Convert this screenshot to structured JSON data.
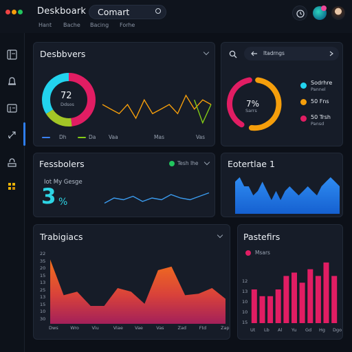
{
  "app": {
    "title": "Deskboark",
    "window_dots": [
      "#ef4444",
      "#f59e0b",
      "#22c55e"
    ]
  },
  "search": {
    "value": "Comart"
  },
  "nav": [
    "Hant",
    "Bache",
    "Bacing",
    "Forhe"
  ],
  "sidebar_icons": [
    "dashboard-icon",
    "bell-icon",
    "calendar-icon",
    "link-icon",
    "inbox-icon",
    "grid-icon"
  ],
  "panel_main": {
    "title": "Desbbvers",
    "donut_value": "72",
    "donut_sub": "Ddsos",
    "donut_segments": [
      {
        "color": "#e11d63",
        "fraction": 0.48
      },
      {
        "color": "#a3c626",
        "fraction": 0.18
      },
      {
        "color": "#22d3ee",
        "fraction": 0.34
      }
    ],
    "legend": [
      {
        "label": "Dh",
        "color": "#3b82f6"
      },
      {
        "label": "Da",
        "color": "#84cc16"
      }
    ],
    "x_labels": [
      "Vaa",
      "Mas",
      "Vas"
    ],
    "series": [
      {
        "name": "",
        "color": "#f59e0b",
        "values": [
          6,
          5,
          4,
          6,
          3,
          7,
          4,
          5,
          6,
          4,
          8,
          5,
          7,
          6
        ]
      },
      {
        "name": "",
        "color": "#84cc16",
        "values": [
          null,
          null,
          null,
          null,
          null,
          null,
          null,
          null,
          null,
          null,
          null,
          7,
          2,
          6
        ]
      }
    ]
  },
  "panel_right_top": {
    "breadcrumb": "Itadrngs",
    "gauge_value": "7%",
    "gauge_sub": "Sarrs",
    "gauge_colors": [
      "#f59e0b",
      "#e11d63"
    ],
    "legend": [
      {
        "title": "Sodrhre",
        "sub": "Pannel",
        "color": "#22d3ee"
      },
      {
        "title": "50 Fns",
        "sub": "",
        "color": "#f59e0b"
      },
      {
        "title": "50 Trsh",
        "sub": "Pansd",
        "color": "#e11d63"
      }
    ]
  },
  "panel_mid_left": {
    "title": "Fessbolers",
    "status": "Tesh Ihe",
    "status_color": "#22c55e",
    "caption": "Iot My Gesge",
    "big_value": "3",
    "big_unit": "%",
    "sparkline": [
      3,
      6,
      5,
      7,
      4,
      6,
      5,
      8,
      6,
      5,
      7,
      9
    ]
  },
  "panel_mid_right": {
    "title": "Eotertlae 1",
    "values": [
      7,
      8,
      6,
      6,
      4,
      5,
      7,
      5,
      3,
      5,
      3,
      5,
      6,
      5,
      4,
      5,
      6,
      5,
      4,
      6,
      7,
      8,
      7,
      6
    ]
  },
  "panel_bottom_left": {
    "title": "Trabigiacs",
    "x_labels": [
      "Dws",
      "Wro",
      "Viu",
      "Viae",
      "Vae",
      "Vas",
      "Zad",
      "Ftd",
      "Zap"
    ],
    "y_labels": [
      "22",
      "35",
      "20",
      "15",
      "13",
      "25",
      "13",
      "15",
      "10",
      "30"
    ],
    "values": [
      9,
      4,
      4.5,
      2.5,
      2.5,
      5,
      4.5,
      2.8,
      7.5,
      8,
      4,
      4.2,
      5,
      3.5
    ]
  },
  "panel_bottom_right": {
    "title": "Pastefirs",
    "legend": "Msars",
    "legend_color": "#e11d63",
    "x_labels": [
      "Ut",
      "Lb",
      "Al",
      "Yu",
      "Gd",
      "Hg",
      "Dgo"
    ],
    "y_labels": [
      "12",
      "13",
      "10",
      "10",
      "15"
    ],
    "values": [
      5,
      4,
      4,
      5,
      7,
      7.5,
      6,
      8,
      7,
      9,
      7
    ]
  }
}
